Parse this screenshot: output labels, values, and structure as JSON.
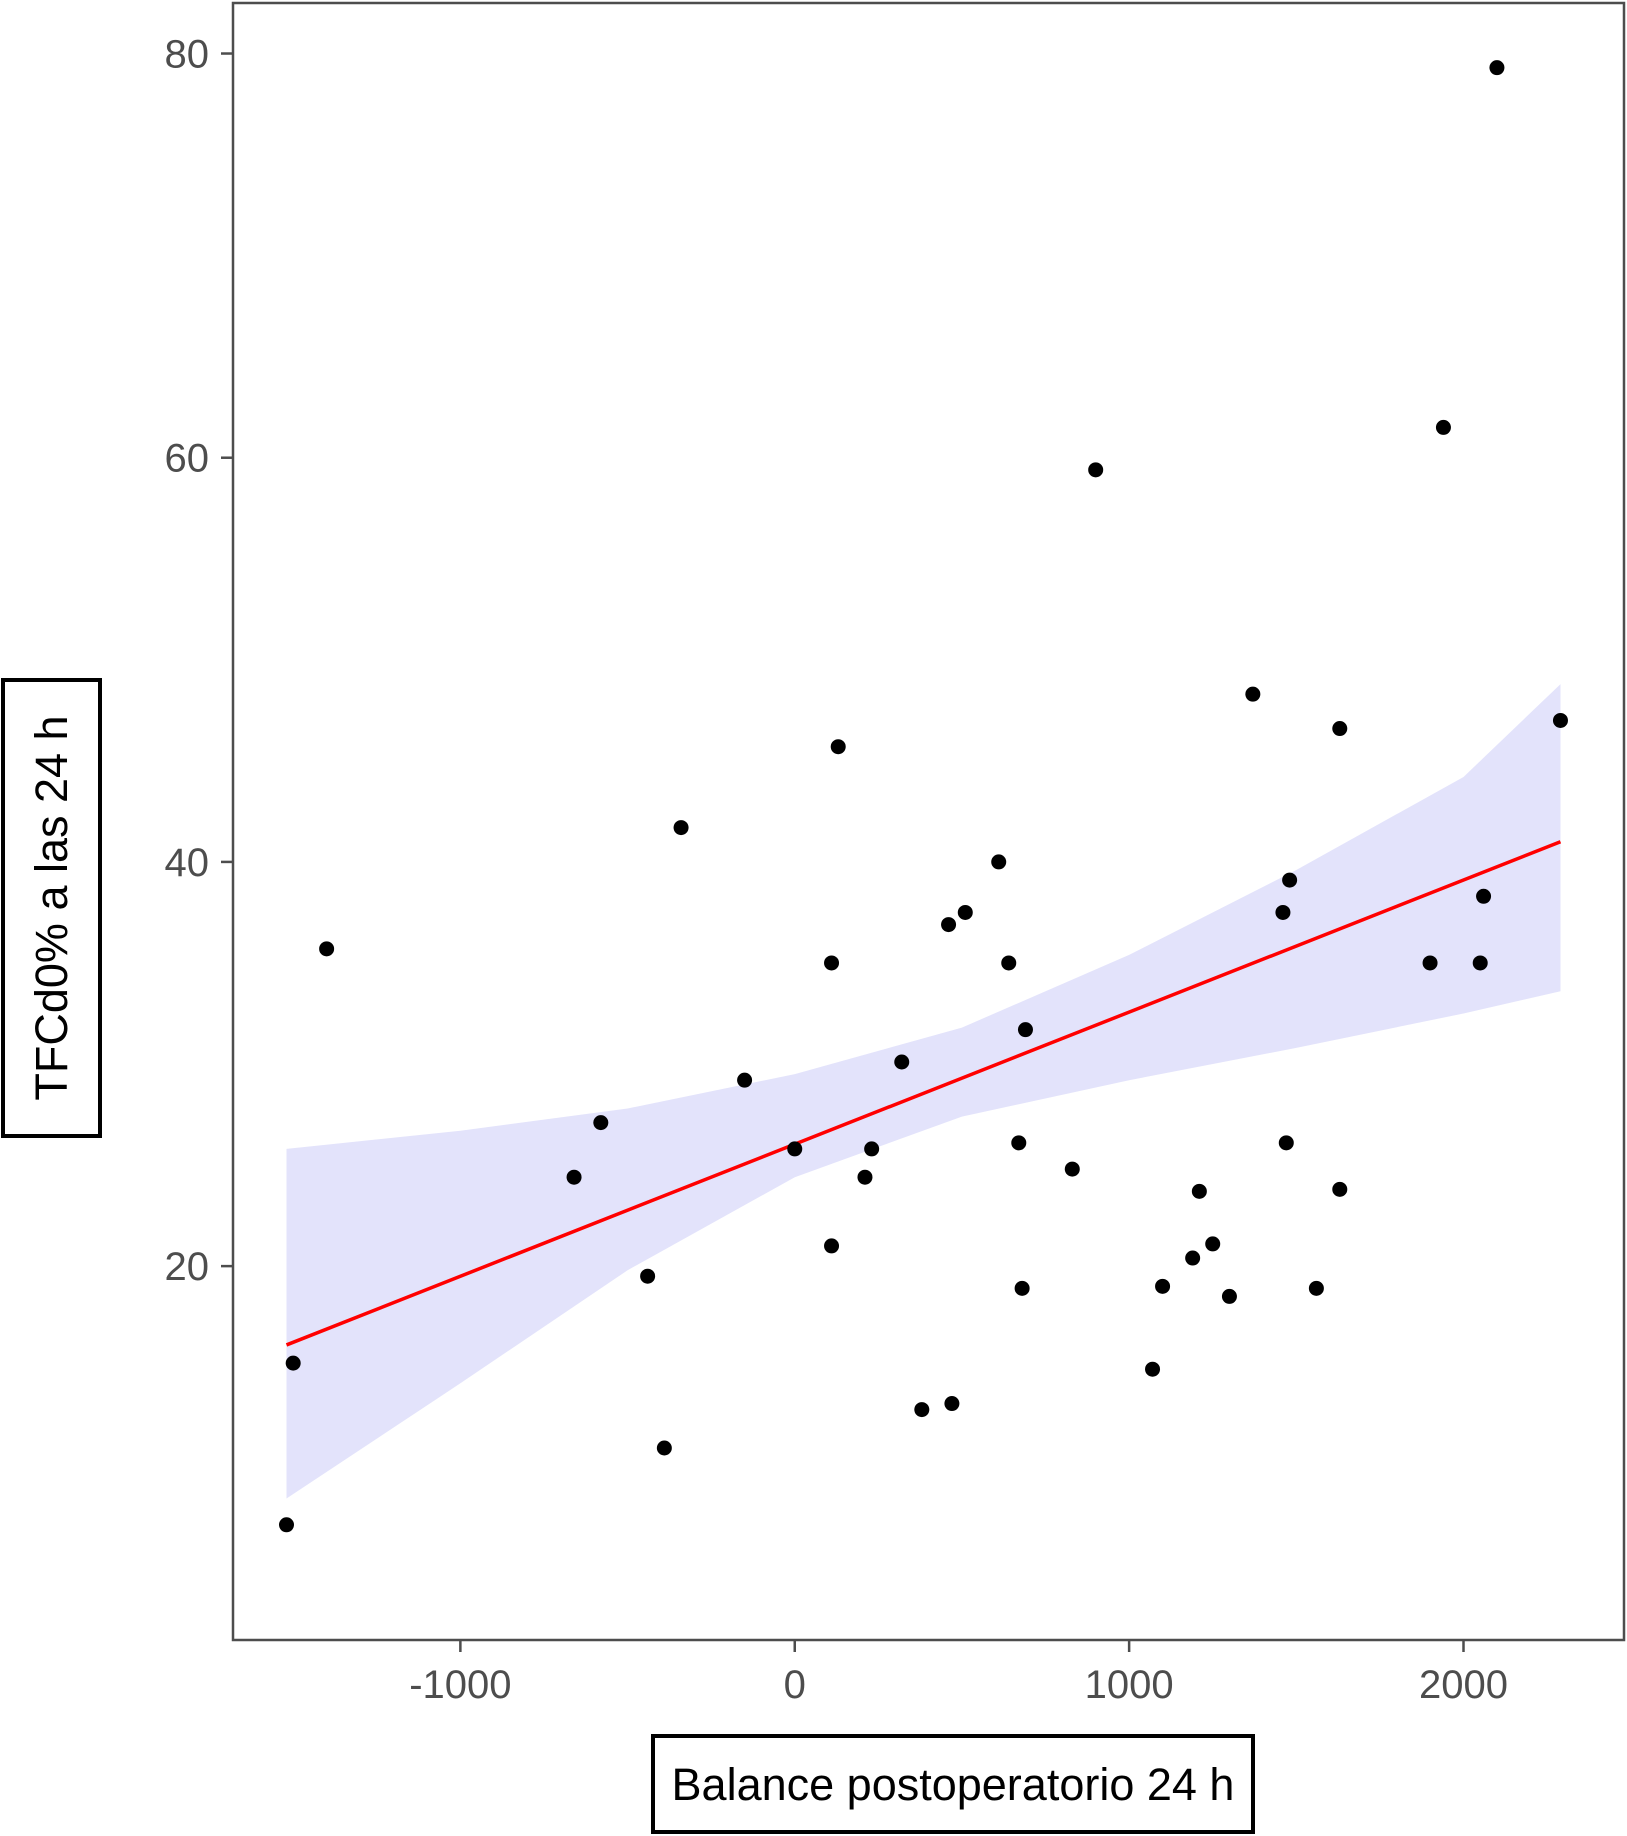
{
  "chart_data": {
    "type": "scatter",
    "title": "",
    "xlabel": "Balance postoperatorio 24 h",
    "ylabel": "TFCd0% a las 24 h",
    "xlim": [
      -1680,
      2480
    ],
    "ylim": [
      1.5,
      82.5
    ],
    "x_ticks": [
      -1000,
      0,
      1000,
      2000
    ],
    "y_ticks": [
      20,
      40,
      60,
      80
    ],
    "x_tick_labels": [
      "-1000",
      "0",
      "1000",
      "2000"
    ],
    "y_tick_labels": [
      "20",
      "40",
      "60",
      "80"
    ],
    "grid": false,
    "point_color": "#000000",
    "points": [
      {
        "x": -1500,
        "y": 15.2
      },
      {
        "x": -1520,
        "y": 7.2
      },
      {
        "x": -1400,
        "y": 35.7
      },
      {
        "x": -660,
        "y": 24.4
      },
      {
        "x": -580,
        "y": 27.1
      },
      {
        "x": -440,
        "y": 19.5
      },
      {
        "x": -390,
        "y": 11.0
      },
      {
        "x": -340,
        "y": 41.7
      },
      {
        "x": -150,
        "y": 29.2
      },
      {
        "x": 0,
        "y": 25.8
      },
      {
        "x": 110,
        "y": 21.0
      },
      {
        "x": 110,
        "y": 35.0
      },
      {
        "x": 130,
        "y": 45.7
      },
      {
        "x": 210,
        "y": 24.4
      },
      {
        "x": 230,
        "y": 25.8
      },
      {
        "x": 320,
        "y": 30.1
      },
      {
        "x": 380,
        "y": 12.9
      },
      {
        "x": 460,
        "y": 36.9
      },
      {
        "x": 470,
        "y": 13.2
      },
      {
        "x": 510,
        "y": 37.5
      },
      {
        "x": 610,
        "y": 40.0
      },
      {
        "x": 640,
        "y": 35.0
      },
      {
        "x": 670,
        "y": 26.1
      },
      {
        "x": 680,
        "y": 18.9
      },
      {
        "x": 690,
        "y": 31.7
      },
      {
        "x": 830,
        "y": 24.8
      },
      {
        "x": 900,
        "y": 59.4
      },
      {
        "x": 1070,
        "y": 14.9
      },
      {
        "x": 1100,
        "y": 19.0
      },
      {
        "x": 1190,
        "y": 20.4
      },
      {
        "x": 1210,
        "y": 23.7
      },
      {
        "x": 1250,
        "y": 21.1
      },
      {
        "x": 1300,
        "y": 18.5
      },
      {
        "x": 1370,
        "y": 48.3
      },
      {
        "x": 1460,
        "y": 37.5
      },
      {
        "x": 1470,
        "y": 26.1
      },
      {
        "x": 1480,
        "y": 39.1
      },
      {
        "x": 1560,
        "y": 18.9
      },
      {
        "x": 1630,
        "y": 46.6
      },
      {
        "x": 1630,
        "y": 23.8
      },
      {
        "x": 1900,
        "y": 35.0
      },
      {
        "x": 1940,
        "y": 61.5
      },
      {
        "x": 2050,
        "y": 35.0
      },
      {
        "x": 2060,
        "y": 38.3
      },
      {
        "x": 2100,
        "y": 79.3
      },
      {
        "x": 2290,
        "y": 47.0
      }
    ],
    "fit_line": {
      "color": "#ff0000",
      "x": [
        -1520,
        2290
      ],
      "y": [
        16.1,
        41.0
      ]
    },
    "confidence_band": {
      "color": "#e3e3fb",
      "x": [
        -1520,
        -1000,
        -500,
        0,
        500,
        1000,
        1500,
        2000,
        2290
      ],
      "lower": [
        8.5,
        14.2,
        19.8,
        24.4,
        27.4,
        29.2,
        30.8,
        32.5,
        33.6
      ],
      "upper": [
        25.8,
        26.7,
        27.8,
        29.5,
        31.8,
        35.4,
        39.6,
        44.2,
        48.8
      ]
    }
  }
}
